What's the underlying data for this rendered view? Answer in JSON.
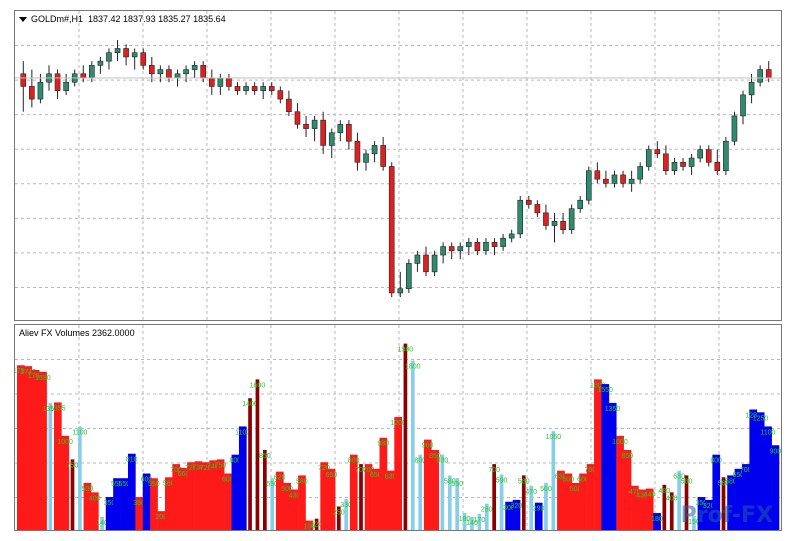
{
  "window": {
    "symbol_header": "GOLDm#,H1  1837.42 1837.93 1835.27 1835.64",
    "indicator_header": "Aliev FX Volumes 2362.0000",
    "watermark": "Prof-FX"
  },
  "colors": {
    "bull": "#2e8b6f",
    "bear": "#e02020",
    "vol_red": "#ff1a1a",
    "vol_blue": "#0000ee",
    "vol_light": "#87ceeb",
    "vol_dark": "#8b0000",
    "vol_label": "#22cc22",
    "grid": "#b8b8b8"
  },
  "chart_data": [
    {
      "type": "candlestick",
      "title": "GOLDm#,H1  1837.42 1837.93 1835.27 1835.64",
      "ohlc": [
        [
          1845,
          1848,
          1836,
          1842
        ],
        [
          1842,
          1846,
          1837,
          1839
        ],
        [
          1839,
          1845,
          1838,
          1843
        ],
        [
          1843,
          1847,
          1841,
          1845
        ],
        [
          1845,
          1846,
          1839,
          1841
        ],
        [
          1841,
          1845,
          1840,
          1843
        ],
        [
          1843,
          1846,
          1842,
          1845
        ],
        [
          1845,
          1847,
          1843,
          1844
        ],
        [
          1844,
          1848,
          1843,
          1847
        ],
        [
          1847,
          1849,
          1845,
          1848
        ],
        [
          1848,
          1851,
          1846,
          1850
        ],
        [
          1850,
          1853,
          1848,
          1851
        ],
        [
          1851,
          1852,
          1847,
          1849
        ],
        [
          1849,
          1851,
          1846,
          1850
        ],
        [
          1850,
          1851,
          1846,
          1847
        ],
        [
          1847,
          1849,
          1843,
          1845
        ],
        [
          1845,
          1847,
          1843,
          1846
        ],
        [
          1846,
          1847,
          1843,
          1844
        ],
        [
          1844,
          1846,
          1842,
          1845
        ],
        [
          1845,
          1847,
          1843,
          1846
        ],
        [
          1846,
          1848,
          1844,
          1847
        ],
        [
          1847,
          1848,
          1843,
          1844
        ],
        [
          1844,
          1846,
          1840,
          1842
        ],
        [
          1842,
          1845,
          1840,
          1844
        ],
        [
          1844,
          1845,
          1841,
          1842
        ],
        [
          1842,
          1843,
          1840,
          1841
        ],
        [
          1841,
          1843,
          1840,
          1842
        ],
        [
          1842,
          1843,
          1840,
          1841
        ],
        [
          1841,
          1843,
          1839,
          1842
        ],
        [
          1842,
          1843,
          1840,
          1841
        ],
        [
          1841,
          1842,
          1838,
          1839
        ],
        [
          1839,
          1841,
          1835,
          1836
        ],
        [
          1836,
          1838,
          1832,
          1833
        ],
        [
          1833,
          1835,
          1830,
          1832
        ],
        [
          1832,
          1835,
          1829,
          1834
        ],
        [
          1834,
          1836,
          1826,
          1828
        ],
        [
          1828,
          1832,
          1825,
          1831
        ],
        [
          1831,
          1834,
          1829,
          1833
        ],
        [
          1833,
          1834,
          1827,
          1829
        ],
        [
          1829,
          1831,
          1822,
          1824
        ],
        [
          1824,
          1827,
          1822,
          1826
        ],
        [
          1826,
          1829,
          1824,
          1828
        ],
        [
          1828,
          1830,
          1822,
          1823
        ],
        [
          1823,
          1824,
          1792,
          1793
        ],
        [
          1793,
          1798,
          1792,
          1794
        ],
        [
          1794,
          1801,
          1793,
          1800
        ],
        [
          1800,
          1803,
          1798,
          1802
        ],
        [
          1802,
          1804,
          1797,
          1798
        ],
        [
          1798,
          1803,
          1797,
          1802
        ],
        [
          1802,
          1805,
          1800,
          1804
        ],
        [
          1804,
          1805,
          1801,
          1803
        ],
        [
          1803,
          1805,
          1801,
          1804
        ],
        [
          1804,
          1806,
          1802,
          1805
        ],
        [
          1805,
          1806,
          1802,
          1803
        ],
        [
          1803,
          1806,
          1802,
          1805
        ],
        [
          1805,
          1806,
          1802,
          1804
        ],
        [
          1804,
          1807,
          1803,
          1806
        ],
        [
          1806,
          1808,
          1805,
          1807
        ],
        [
          1807,
          1816,
          1806,
          1815
        ],
        [
          1815,
          1816,
          1813,
          1814
        ],
        [
          1814,
          1815,
          1811,
          1812
        ],
        [
          1812,
          1814,
          1808,
          1809
        ],
        [
          1809,
          1812,
          1805,
          1810
        ],
        [
          1810,
          1812,
          1807,
          1808
        ],
        [
          1808,
          1814,
          1807,
          1813
        ],
        [
          1813,
          1816,
          1812,
          1815
        ],
        [
          1815,
          1823,
          1814,
          1822
        ],
        [
          1822,
          1824,
          1819,
          1820
        ],
        [
          1820,
          1822,
          1818,
          1819
        ],
        [
          1819,
          1822,
          1818,
          1821
        ],
        [
          1821,
          1822,
          1818,
          1819
        ],
        [
          1819,
          1822,
          1817,
          1820
        ],
        [
          1820,
          1824,
          1819,
          1823
        ],
        [
          1823,
          1828,
          1822,
          1827
        ],
        [
          1827,
          1829,
          1825,
          1826
        ],
        [
          1826,
          1828,
          1821,
          1822
        ],
        [
          1822,
          1825,
          1821,
          1824
        ],
        [
          1824,
          1825,
          1822,
          1823
        ],
        [
          1823,
          1826,
          1821,
          1825
        ],
        [
          1825,
          1828,
          1824,
          1827
        ],
        [
          1827,
          1828,
          1823,
          1824
        ],
        [
          1824,
          1827,
          1821,
          1822
        ],
        [
          1822,
          1830,
          1821,
          1829
        ],
        [
          1829,
          1836,
          1828,
          1835
        ],
        [
          1835,
          1841,
          1833,
          1840
        ],
        [
          1840,
          1845,
          1838,
          1843
        ],
        [
          1843,
          1847,
          1842,
          1846
        ],
        [
          1846,
          1848,
          1843,
          1844
        ]
      ]
    },
    {
      "type": "bar",
      "title": "Aliev FX Volumes 2362.0000",
      "bars": [
        [
          1750,
          "r",
          "1750"
        ],
        [
          1740,
          "r",
          "1740"
        ],
        [
          1700,
          "r",
          "1700"
        ],
        [
          1680,
          "r",
          "1680"
        ],
        [
          1350,
          "l",
          "1350"
        ],
        [
          1355,
          "r",
          "1355"
        ],
        [
          1000,
          "r",
          "1000"
        ],
        [
          750,
          "d",
          "750"
        ],
        [
          1100,
          "l",
          "1100"
        ],
        [
          500,
          "r",
          "500"
        ],
        [
          400,
          "r",
          "400"
        ],
        [
          140,
          "l",
          "140"
        ],
        [
          350,
          "b",
          "350"
        ],
        [
          550,
          "b",
          "550"
        ],
        [
          550,
          "b",
          "550"
        ],
        [
          810,
          "b",
          "810"
        ],
        [
          350,
          "r",
          "350"
        ],
        [
          600,
          "b",
          "600"
        ],
        [
          550,
          "r",
          "550"
        ],
        [
          200,
          "r",
          "200"
        ],
        [
          560,
          "r",
          "560"
        ],
        [
          700,
          "r",
          "700"
        ],
        [
          660,
          "r",
          "660"
        ],
        [
          720,
          "r",
          "720"
        ],
        [
          730,
          "r",
          "730"
        ],
        [
          720,
          "r",
          "720"
        ],
        [
          740,
          "r",
          "740"
        ],
        [
          750,
          "r",
          "750"
        ],
        [
          600,
          "r",
          "600"
        ],
        [
          800,
          "b",
          "800"
        ],
        [
          1100,
          "b",
          "1100"
        ],
        [
          1400,
          "d",
          "1400"
        ],
        [
          1600,
          "d",
          "1600"
        ],
        [
          850,
          "d",
          "850"
        ],
        [
          550,
          "l",
          "550"
        ],
        [
          620,
          "r",
          "620"
        ],
        [
          500,
          "r",
          "500"
        ],
        [
          430,
          "r",
          "430"
        ],
        [
          580,
          "r",
          "580"
        ],
        [
          100,
          "r",
          "100"
        ],
        [
          120,
          "d",
          "120"
        ],
        [
          720,
          "r",
          "720"
        ],
        [
          650,
          "r",
          "650"
        ],
        [
          250,
          "d",
          "250"
        ],
        [
          330,
          "l",
          "330"
        ],
        [
          800,
          "r",
          "800"
        ],
        [
          700,
          "d",
          "700"
        ],
        [
          700,
          "r",
          "700"
        ],
        [
          650,
          "r",
          "650"
        ],
        [
          980,
          "r",
          "980"
        ],
        [
          630,
          "r",
          "630"
        ],
        [
          1200,
          "r",
          "1200"
        ],
        [
          1980,
          "d",
          "1980"
        ],
        [
          1800,
          "l",
          "1800"
        ],
        [
          800,
          "l",
          "800"
        ],
        [
          960,
          "r",
          "960"
        ],
        [
          850,
          "r",
          "850"
        ],
        [
          800,
          "l",
          "800"
        ],
        [
          580,
          "l",
          "580"
        ],
        [
          550,
          "l",
          "550"
        ],
        [
          180,
          "l",
          "180"
        ],
        [
          140,
          "l",
          "140"
        ],
        [
          170,
          "l",
          "170"
        ],
        [
          280,
          "l",
          "280"
        ],
        [
          700,
          "d",
          "700"
        ],
        [
          590,
          "l",
          "590"
        ],
        [
          300,
          "b",
          "300"
        ],
        [
          320,
          "b",
          "320"
        ],
        [
          580,
          "d",
          "580"
        ],
        [
          470,
          "l",
          "470"
        ],
        [
          290,
          "b",
          "290"
        ],
        [
          500,
          "l",
          "500"
        ],
        [
          1050,
          "l",
          "1050"
        ],
        [
          630,
          "r",
          "630"
        ],
        [
          600,
          "r",
          "600"
        ],
        [
          500,
          "r",
          "500"
        ],
        [
          600,
          "r",
          "600"
        ],
        [
          700,
          "r",
          "700"
        ],
        [
          1600,
          "r",
          "1600"
        ],
        [
          1550,
          "b",
          "1550"
        ],
        [
          1350,
          "b",
          "1350"
        ],
        [
          1000,
          "r",
          "1000"
        ],
        [
          850,
          "r",
          "850"
        ],
        [
          470,
          "r",
          "470"
        ],
        [
          430,
          "r",
          "430"
        ],
        [
          440,
          "r",
          "440"
        ],
        [
          180,
          "b",
          "180"
        ],
        [
          480,
          "d",
          "480"
        ],
        [
          400,
          "d",
          "400"
        ],
        [
          630,
          "l",
          "630"
        ],
        [
          580,
          "d",
          "580"
        ],
        [
          150,
          "l",
          "150"
        ],
        [
          350,
          "b",
          "350"
        ],
        [
          320,
          "b",
          "320"
        ],
        [
          800,
          "b",
          "800"
        ],
        [
          560,
          "d",
          "560"
        ],
        [
          580,
          "b",
          "580"
        ],
        [
          650,
          "b",
          "650"
        ],
        [
          700,
          "b",
          "700"
        ],
        [
          1280,
          "b",
          "1280"
        ],
        [
          1250,
          "b",
          "1250"
        ],
        [
          1100,
          "b",
          "1100"
        ],
        [
          900,
          "b",
          "900"
        ]
      ]
    }
  ]
}
